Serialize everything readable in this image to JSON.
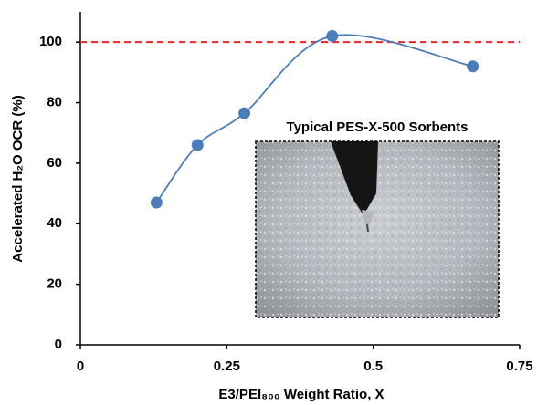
{
  "chart_data": {
    "type": "line",
    "x_label": "E3/PEI₈₀₀ Weight Ratio, X",
    "y_label": "Accelerated H₂O OCR (%)",
    "x": [
      0.13,
      0.2,
      0.28,
      0.43,
      0.67
    ],
    "values": [
      47,
      66,
      76.5,
      102,
      92
    ],
    "color": "#4a7ebb",
    "smooth": true,
    "xlim": [
      0,
      0.75
    ],
    "xticks": [
      0,
      0.25,
      0.5,
      0.75
    ],
    "ylim": [
      0,
      110
    ],
    "yticks": [
      0,
      20,
      40,
      60,
      80,
      100
    ],
    "reference_line": {
      "value": 100,
      "color": "#e8262a"
    },
    "annotations": [
      "Typical PES-X-500 Sorbents"
    ]
  }
}
